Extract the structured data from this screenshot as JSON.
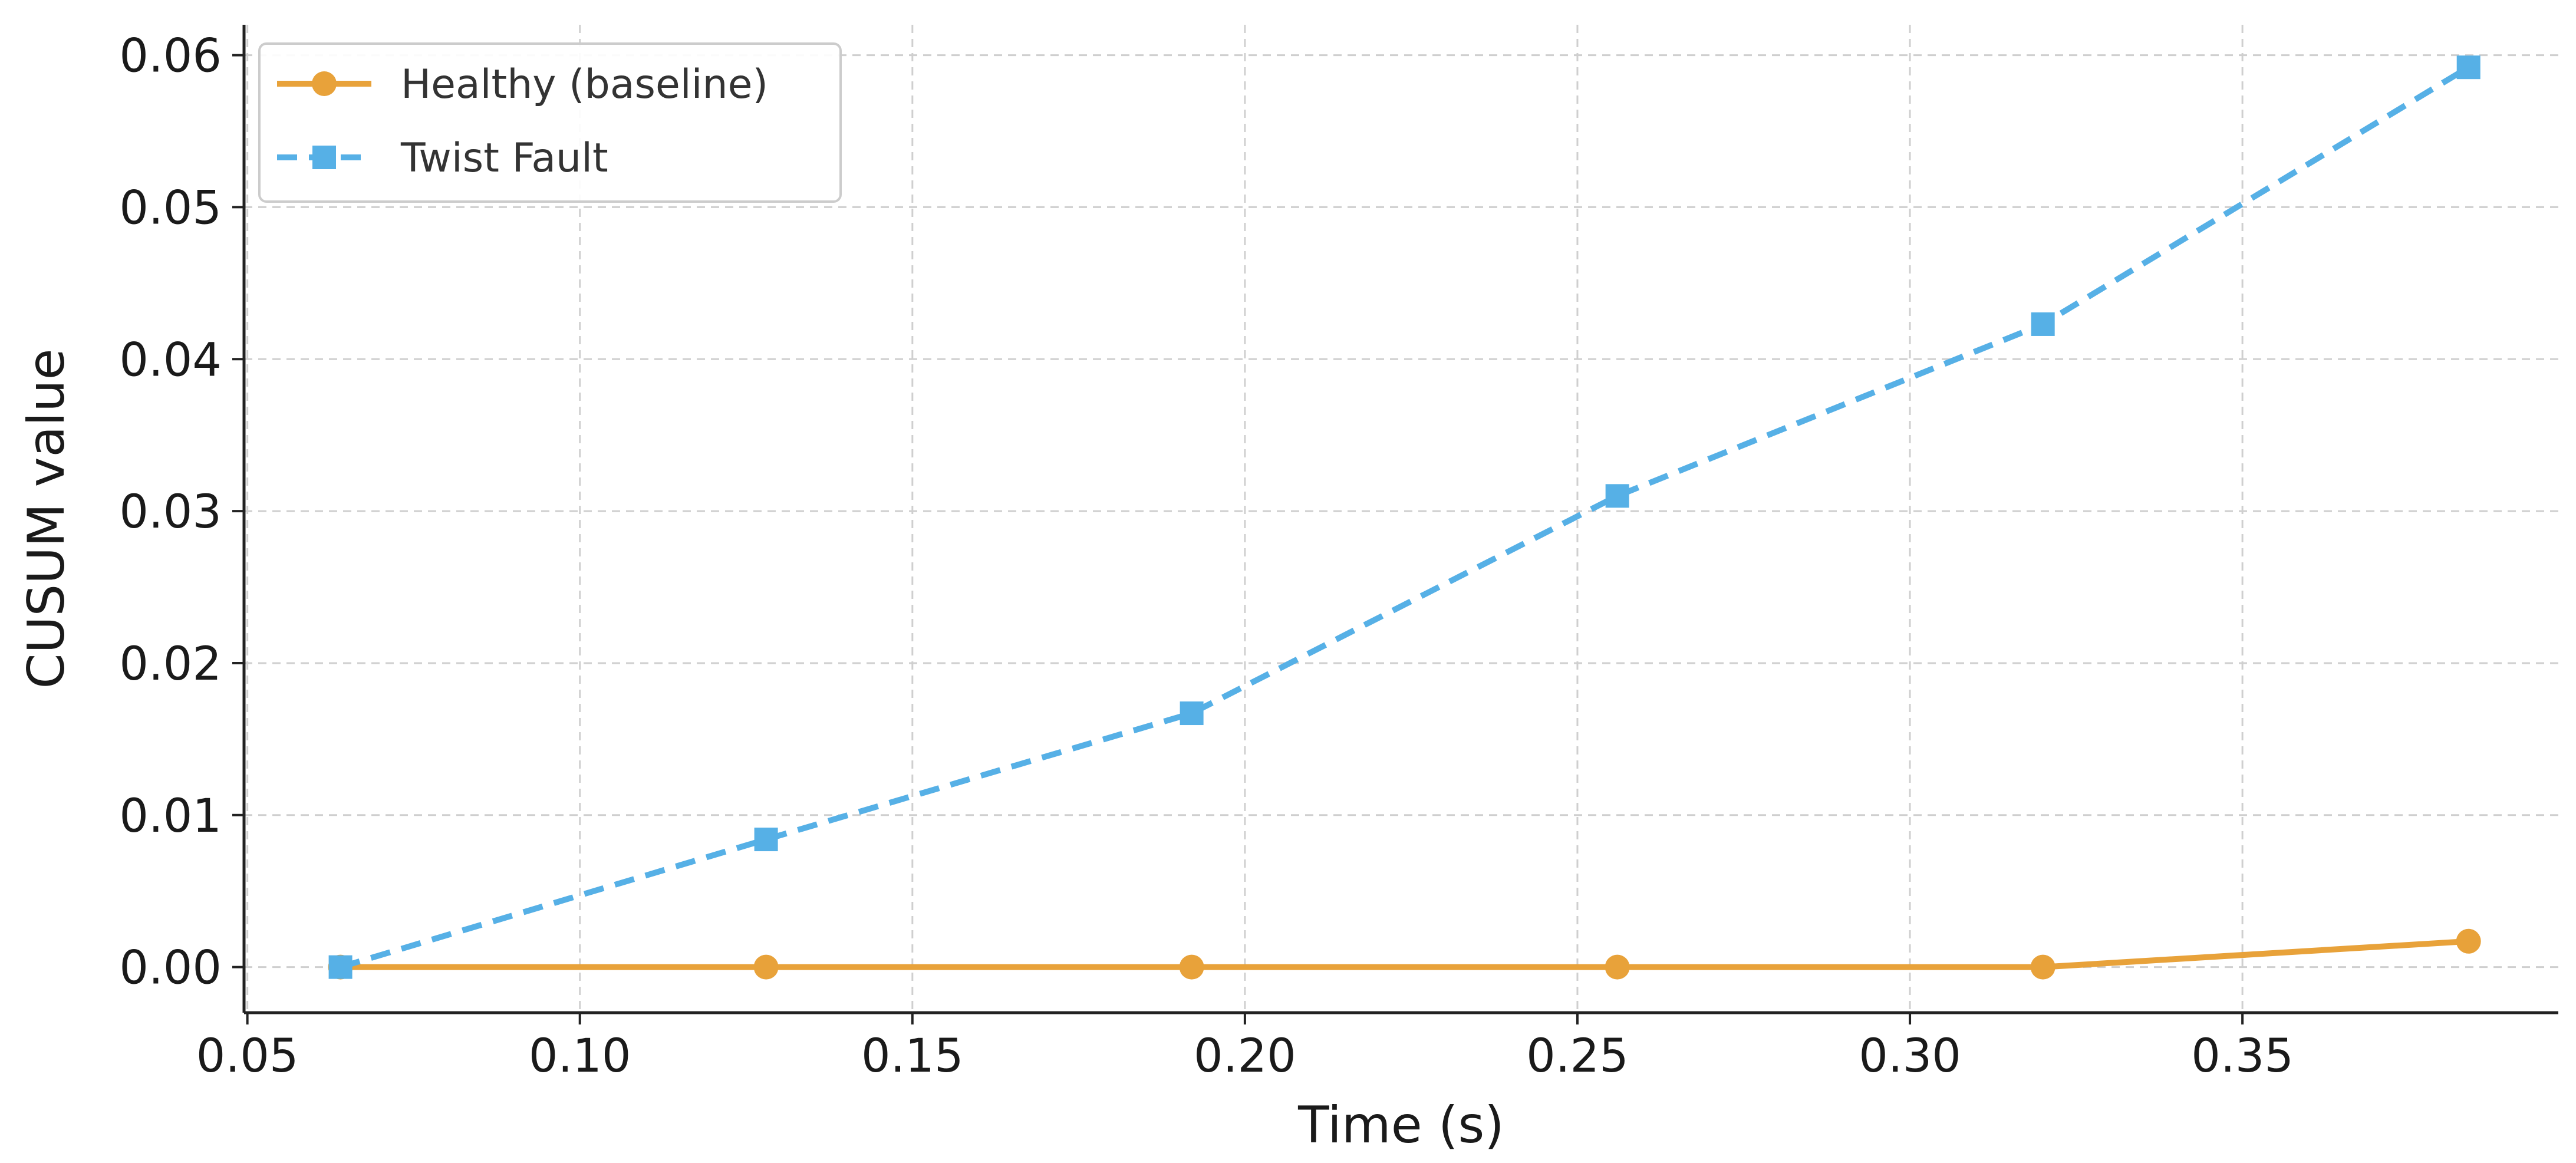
{
  "chart_data": {
    "type": "line",
    "title": "",
    "xlabel": "Time (s)",
    "ylabel": "CUSUM value",
    "xlim": [
      0.0495,
      0.3975
    ],
    "ylim": [
      -0.003,
      0.062
    ],
    "x_ticks": [
      0.05,
      0.1,
      0.15,
      0.2,
      0.25,
      0.3,
      0.35
    ],
    "x_tick_labels": [
      "0.05",
      "0.10",
      "0.15",
      "0.20",
      "0.25",
      "0.30",
      "0.35"
    ],
    "y_ticks": [
      0.0,
      0.01,
      0.02,
      0.03,
      0.04,
      0.05,
      0.06
    ],
    "y_tick_labels": [
      "0.00",
      "0.01",
      "0.02",
      "0.03",
      "0.04",
      "0.05",
      "0.06"
    ],
    "grid": true,
    "legend_position": "top-left",
    "x": [
      0.064,
      0.128,
      0.192,
      0.256,
      0.32,
      0.384
    ],
    "series": [
      {
        "name": "Healthy (baseline)",
        "values": [
          0.0,
          0.0,
          0.0,
          0.0,
          0.0,
          0.0017
        ],
        "color": "#E8A23A",
        "line_style": "solid",
        "marker": "circle"
      },
      {
        "name": "Twist Fault",
        "values": [
          0.0,
          0.0084,
          0.0167,
          0.031,
          0.0423,
          0.0592
        ],
        "color": "#56B0E6",
        "line_style": "dashed",
        "marker": "square"
      }
    ]
  }
}
